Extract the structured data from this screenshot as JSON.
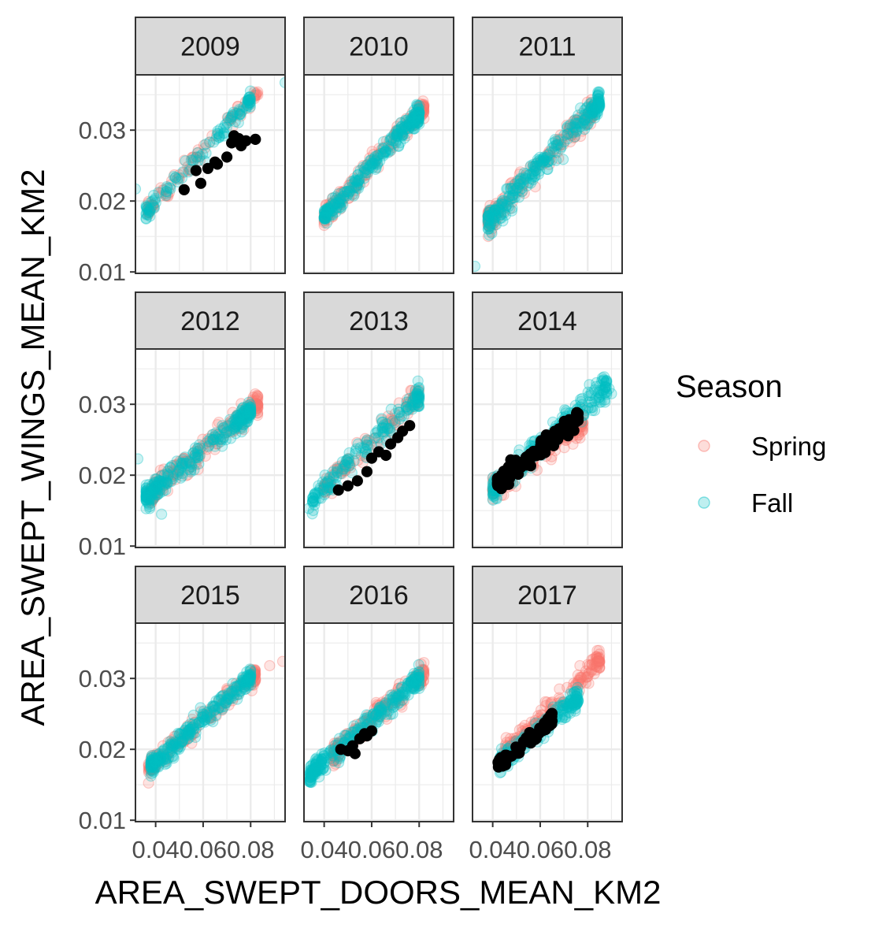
{
  "chart_data": {
    "type": "scatter",
    "facet_by": "year",
    "xlabel": "AREA_SWEPT_DOORS_MEAN_KM2",
    "ylabel": "AREA_SWEPT_WINGS_MEAN_KM2",
    "xlim": [
      0.0315,
      0.0945
    ],
    "ylim": [
      0.0098,
      0.0378
    ],
    "x_ticks": [
      0.04,
      0.06,
      0.08
    ],
    "x_tick_labels": [
      "0.04",
      "0.06",
      "0.08"
    ],
    "y_ticks": [
      0.01,
      0.02,
      0.03
    ],
    "y_tick_labels": [
      "0.01",
      "0.02",
      "0.03"
    ],
    "grid": true,
    "legend": {
      "title": "Season",
      "position": "right",
      "entries": [
        {
          "name": "Spring",
          "color": "#F8766D"
        },
        {
          "name": "Fall",
          "color": "#00BFC4"
        }
      ]
    },
    "highlight_color": "#000000",
    "panels": [
      {
        "label": "2009",
        "spring": {
          "x_range": [
            0.037,
            0.083
          ],
          "slope": 0.36,
          "intercept": 0.0055,
          "n": 80,
          "sd": 0.0009
        },
        "fall": {
          "x_range": [
            0.036,
            0.08
          ],
          "slope": 0.36,
          "intercept": 0.0055,
          "n": 110,
          "sd": 0.0008
        },
        "fall_outliers": [
          [
            0.0315,
            0.0217
          ],
          [
            0.0945,
            0.0367
          ]
        ],
        "highlight": [
          [
            0.052,
            0.0216
          ],
          [
            0.057,
            0.0243
          ],
          [
            0.059,
            0.0225
          ],
          [
            0.062,
            0.0246
          ],
          [
            0.065,
            0.0255
          ],
          [
            0.066,
            0.0252
          ],
          [
            0.07,
            0.0262
          ],
          [
            0.072,
            0.0282
          ],
          [
            0.073,
            0.0292
          ],
          [
            0.075,
            0.0288
          ],
          [
            0.076,
            0.0278
          ],
          [
            0.078,
            0.0285
          ],
          [
            0.082,
            0.0287
          ]
        ]
      },
      {
        "label": "2010",
        "spring": {
          "x_range": [
            0.04,
            0.082
          ],
          "slope": 0.36,
          "intercept": 0.0035,
          "n": 180,
          "sd": 0.0011
        },
        "fall": {
          "x_range": [
            0.04,
            0.08
          ],
          "slope": 0.36,
          "intercept": 0.0035,
          "n": 260,
          "sd": 0.0009
        },
        "fall_outliers": [],
        "highlight": []
      },
      {
        "label": "2011",
        "spring": {
          "x_range": [
            0.038,
            0.082
          ],
          "slope": 0.36,
          "intercept": 0.0035,
          "n": 170,
          "sd": 0.0014
        },
        "fall": {
          "x_range": [
            0.038,
            0.085
          ],
          "slope": 0.36,
          "intercept": 0.0035,
          "n": 260,
          "sd": 0.0012
        },
        "fall_outliers": [
          [
            0.0325,
            0.0108
          ]
        ],
        "highlight": []
      },
      {
        "label": "2012",
        "spring": {
          "x_range": [
            0.038,
            0.083
          ],
          "slope": 0.28,
          "intercept": 0.0068,
          "n": 180,
          "sd": 0.0012
        },
        "fall": {
          "x_range": [
            0.036,
            0.08
          ],
          "slope": 0.28,
          "intercept": 0.0068,
          "n": 260,
          "sd": 0.0011
        },
        "fall_outliers": [
          [
            0.0325,
            0.0223
          ],
          [
            0.0375,
            0.0153
          ],
          [
            0.0425,
            0.0145
          ]
        ],
        "highlight": []
      },
      {
        "label": "2013",
        "spring": {
          "x_range": [
            0.04,
            0.08
          ],
          "slope": 0.33,
          "intercept": 0.005,
          "n": 110,
          "sd": 0.0012
        },
        "fall": {
          "x_range": [
            0.035,
            0.08
          ],
          "slope": 0.33,
          "intercept": 0.005,
          "n": 160,
          "sd": 0.0011
        },
        "fall_outliers": [
          [
            0.0335,
            0.0153
          ]
        ],
        "highlight": [
          [
            0.046,
            0.0179
          ],
          [
            0.05,
            0.0185
          ],
          [
            0.054,
            0.0192
          ],
          [
            0.058,
            0.0205
          ],
          [
            0.06,
            0.0224
          ],
          [
            0.063,
            0.0233
          ],
          [
            0.066,
            0.0228
          ],
          [
            0.068,
            0.0244
          ],
          [
            0.071,
            0.0253
          ],
          [
            0.073,
            0.0262
          ],
          [
            0.076,
            0.027
          ]
        ]
      },
      {
        "label": "2014",
        "spring": {
          "x_range": [
            0.04,
            0.078
          ],
          "slope": 0.24,
          "intercept": 0.0085,
          "n": 150,
          "sd": 0.0012
        },
        "fall": {
          "x_range": [
            0.04,
            0.088
          ],
          "slope": 0.3,
          "intercept": 0.0062,
          "n": 200,
          "sd": 0.0013
        },
        "fall_outliers": [
          [
            0.087,
            0.0315
          ],
          [
            0.089,
            0.0322
          ],
          [
            0.09,
            0.0315
          ],
          [
            0.083,
            0.0305
          ]
        ],
        "highlight": {
          "x_range": [
            0.042,
            0.076
          ],
          "slope": 0.27,
          "intercept": 0.0075,
          "n": 110,
          "sd": 0.0009
        }
      },
      {
        "label": "2015",
        "spring": {
          "x_range": [
            0.037,
            0.082
          ],
          "slope": 0.3,
          "intercept": 0.0062,
          "n": 180,
          "sd": 0.001
        },
        "fall": {
          "x_range": [
            0.038,
            0.08
          ],
          "slope": 0.3,
          "intercept": 0.0062,
          "n": 260,
          "sd": 0.0009
        },
        "fall_outliers": [],
        "spring_outliers": [
          [
            0.088,
            0.0318
          ],
          [
            0.0935,
            0.0324
          ]
        ],
        "highlight": []
      },
      {
        "label": "2016",
        "spring": {
          "x_range": [
            0.044,
            0.082
          ],
          "slope": 0.3,
          "intercept": 0.0062,
          "n": 180,
          "sd": 0.0011
        },
        "fall": {
          "x_range": [
            0.034,
            0.08
          ],
          "slope": 0.3,
          "intercept": 0.0062,
          "n": 260,
          "sd": 0.001
        },
        "fall_outliers": [
          [
            0.0335,
            0.0155
          ],
          [
            0.0385,
            0.017
          ]
        ],
        "highlight": [
          [
            0.047,
            0.02
          ],
          [
            0.05,
            0.0198
          ],
          [
            0.052,
            0.0205
          ],
          [
            0.053,
            0.0194
          ],
          [
            0.055,
            0.0215
          ],
          [
            0.057,
            0.0222
          ],
          [
            0.058,
            0.0219
          ],
          [
            0.06,
            0.0226
          ]
        ]
      },
      {
        "label": "2017",
        "spring": {
          "x_range": [
            0.045,
            0.085
          ],
          "slope": 0.33,
          "intercept": 0.0045,
          "n": 180,
          "sd": 0.0011
        },
        "fall": {
          "x_range": [
            0.043,
            0.076
          ],
          "slope": 0.28,
          "intercept": 0.006,
          "n": 200,
          "sd": 0.0009
        },
        "fall_outliers": [],
        "highlight": {
          "x_range": [
            0.042,
            0.065
          ],
          "slope": 0.28,
          "intercept": 0.006,
          "n": 70,
          "sd": 0.0006
        }
      }
    ]
  }
}
